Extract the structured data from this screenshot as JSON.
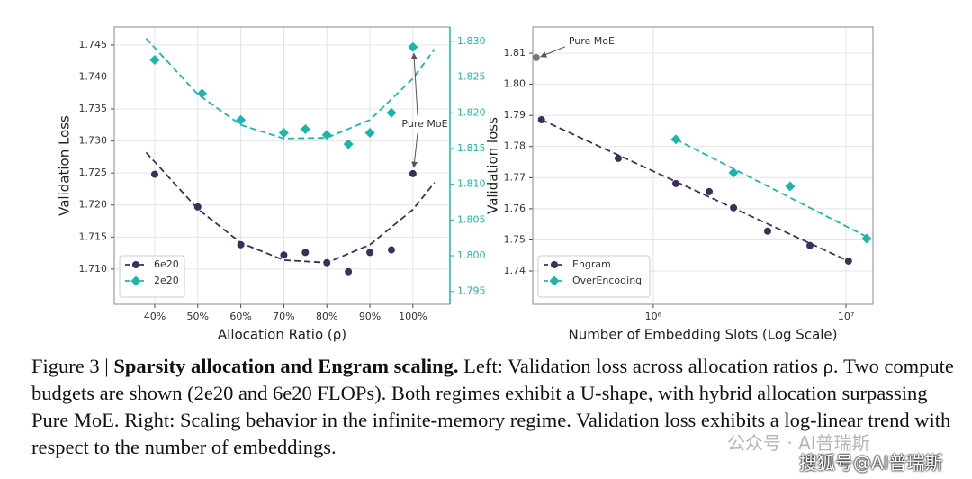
{
  "chart_data": [
    {
      "type": "scatter",
      "xlabel": "Allocation Ratio (ρ)",
      "ylabel": "Validation Loss",
      "xlim": [
        30.6,
        108.6
      ],
      "ylim": [
        1.7045,
        1.7478
      ],
      "y2lim": [
        1.7932,
        1.832
      ],
      "grid": true,
      "legend": "lower left",
      "xticks": [
        {
          "value": 40,
          "label": "40%"
        },
        {
          "value": 50,
          "label": "50%"
        },
        {
          "value": 60,
          "label": "60%"
        },
        {
          "value": 70,
          "label": "70%"
        },
        {
          "value": 80,
          "label": "80%"
        },
        {
          "value": 90,
          "label": "90%"
        },
        {
          "value": 100,
          "label": "100%"
        }
      ],
      "yticks": [
        {
          "value": 1.71,
          "label": "1.710"
        },
        1.715,
        {
          "value": 1.72,
          "label": "1.720"
        },
        1.725,
        {
          "value": 1.73,
          "label": "1.730"
        },
        1.735,
        {
          "value": 1.74,
          "label": "1.740"
        },
        1.745
      ],
      "y2ticks": [
        1.795,
        {
          "value": 1.8,
          "label": "1.800"
        },
        1.805,
        {
          "value": 1.81,
          "label": "1.810"
        },
        1.815,
        {
          "value": 1.82,
          "label": "1.820"
        },
        1.825,
        {
          "value": 1.83,
          "label": "1.830"
        }
      ],
      "series": [
        {
          "name": "6e20",
          "color": "#3f2d5c",
          "marker": "circle",
          "axis": "y",
          "x": [
            40,
            50,
            60,
            70,
            75,
            80,
            85,
            90,
            95,
            100
          ],
          "values": [
            1.7248,
            1.7197,
            1.7138,
            1.7122,
            1.7126,
            1.711,
            1.7096,
            1.7126,
            1.713,
            1.7249
          ],
          "fit": {
            "x": [
              38,
              50,
              60,
              70,
              80,
              90,
              100,
              105
            ],
            "values": [
              1.7282,
              1.7194,
              1.7141,
              1.7114,
              1.711,
              1.7138,
              1.7193,
              1.7235
            ]
          }
        },
        {
          "name": "2e20",
          "color": "#1bb5ad",
          "marker": "diamond",
          "axis": "y2",
          "x": [
            40,
            51,
            60,
            70,
            75,
            80,
            85,
            90,
            95,
            100
          ],
          "values": [
            1.8274,
            1.8227,
            1.819,
            1.8172,
            1.8177,
            1.8169,
            1.8156,
            1.8172,
            1.82,
            1.8292
          ],
          "fit": {
            "x": [
              38,
              50,
              60,
              70,
              80,
              90,
              100,
              105
            ],
            "values": [
              1.8304,
              1.8226,
              1.8183,
              1.8164,
              1.8165,
              1.819,
              1.8248,
              1.8289
            ]
          }
        }
      ],
      "annotations": [
        {
          "text": "Pure MoE"
        }
      ]
    },
    {
      "type": "scatter",
      "xlabel": "Number of Embedding Slots (Log Scale)",
      "ylabel": "Validation loss",
      "xscale": "log",
      "xlim": [
        237000,
        13800000
      ],
      "ylim": [
        1.7293,
        1.8184
      ],
      "grid": true,
      "legend": "lower left",
      "xticks": [
        {
          "value": 1000000,
          "label": "10⁶"
        },
        {
          "value": 10000000,
          "label": "10⁷"
        }
      ],
      "yticks": [
        1.74,
        1.75,
        1.76,
        1.77,
        1.78,
        1.79,
        {
          "value": 1.8,
          "label": "1.80"
        },
        1.81
      ],
      "series": [
        {
          "name": "Engram",
          "color": "#3f2d5c",
          "marker": "circle",
          "x": [
            263000,
            658000,
            1310000,
            1950000,
            2610000,
            3920000,
            6500000,
            10300000
          ],
          "values": [
            1.7886,
            1.7762,
            1.7681,
            1.7655,
            1.7603,
            1.7528,
            1.7482,
            1.7432
          ],
          "fit": {
            "x": [
              263000,
              10300000
            ],
            "values": [
              1.7886,
              1.7432
            ]
          }
        },
        {
          "name": "OverEncoding",
          "color": "#1bb5ad",
          "marker": "diamond",
          "x": [
            1310000,
            2610000,
            5130000,
            12800000
          ],
          "values": [
            1.7823,
            1.7716,
            1.7672,
            1.7504
          ],
          "fit": {
            "x": [
              1310000,
              12800000
            ],
            "values": [
              1.7823,
              1.751
            ]
          }
        }
      ],
      "annotations": [
        {
          "text": "Pure MoE",
          "x": 247000,
          "y": 1.8086,
          "color": "#777777"
        }
      ]
    }
  ],
  "caption": {
    "label": "Figure 3 |",
    "title": "Sparsity allocation and Engram scaling.",
    "text": "Left: Validation loss across allocation ratios ρ. Two compute budgets are shown (2e20 and 6e20 FLOPs). Both regimes exhibit a U-shape, with hybrid allocation surpassing Pure MoE. Right: Scaling behavior in the infinite-memory regime. Validation loss exhibits a log-linear trend with respect to the number of embeddings."
  },
  "watermark": [
    "公众号 · AI普瑞斯",
    "搜狐号@AI普瑞斯"
  ]
}
